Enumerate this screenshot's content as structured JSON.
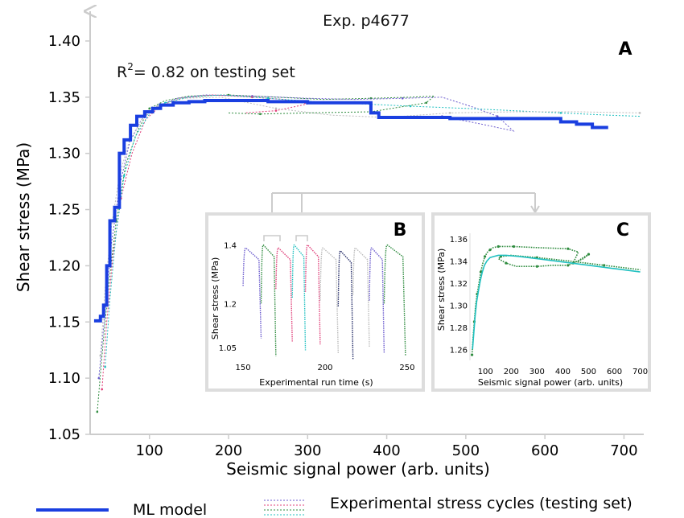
{
  "figure": {
    "title": "Exp. p4677",
    "r2_label": "R",
    "r2_sup": "2",
    "r2_text": "= 0.82 on testing set",
    "legend": {
      "model_label": "ML model",
      "cycles_label": "Experimental stress cycles (testing set)"
    },
    "colors": {
      "model": "#1a3fe0",
      "cycle_a": "#2e8b3e",
      "cycle_b": "#6a5acd",
      "cycle_c": "#e0407a",
      "cycle_d": "#20c0c0",
      "cycle_e": "#bbbbbb"
    }
  },
  "chart_data": [
    {
      "panel": "A",
      "type": "line",
      "xlabel": "Seismic signal power (arb. units)",
      "ylabel": "Shear stress (MPa)",
      "xlim": [
        25,
        725
      ],
      "ylim": [
        1.05,
        1.415
      ],
      "xticks": [
        100,
        200,
        300,
        400,
        500,
        600,
        700
      ],
      "yticks": [
        1.05,
        1.1,
        1.15,
        1.2,
        1.25,
        1.3,
        1.35,
        1.4
      ],
      "ytick_labels": [
        "1.05",
        "1.10",
        "1.15",
        "1.20",
        "1.25",
        "1.30",
        "1.35",
        "1.40"
      ],
      "series": [
        {
          "role": "model",
          "x": [
            30,
            38,
            38,
            42,
            42,
            46,
            46,
            50,
            50,
            56,
            56,
            62,
            62,
            68,
            68,
            76,
            76,
            84,
            84,
            94,
            94,
            104,
            104,
            114,
            114,
            130,
            130,
            150,
            150,
            170,
            170,
            250,
            250,
            300,
            300,
            380,
            380,
            390,
            390,
            480,
            480,
            620,
            620,
            640,
            640,
            660,
            660,
            680
          ],
          "y": [
            1.151,
            1.151,
            1.155,
            1.155,
            1.165,
            1.165,
            1.2,
            1.2,
            1.24,
            1.24,
            1.252,
            1.252,
            1.3,
            1.3,
            1.312,
            1.312,
            1.325,
            1.325,
            1.333,
            1.333,
            1.337,
            1.337,
            1.34,
            1.34,
            1.343,
            1.343,
            1.345,
            1.345,
            1.346,
            1.346,
            1.347,
            1.347,
            1.346,
            1.346,
            1.345,
            1.345,
            1.336,
            1.336,
            1.332,
            1.332,
            1.331,
            1.331,
            1.328,
            1.328,
            1.326,
            1.326,
            1.323,
            1.323
          ]
        },
        {
          "role": "cycle",
          "color": "cycle_a",
          "x": [
            34,
            40,
            48,
            58,
            70,
            85,
            100,
            120,
            150,
            200,
            260,
            320,
            380,
            430,
            460,
            450,
            380,
            300,
            240,
            200
          ],
          "y": [
            1.07,
            1.12,
            1.18,
            1.24,
            1.29,
            1.32,
            1.34,
            1.347,
            1.351,
            1.352,
            1.35,
            1.348,
            1.349,
            1.35,
            1.351,
            1.345,
            1.337,
            1.336,
            1.335,
            1.336
          ]
        },
        {
          "role": "cycle",
          "color": "cycle_b",
          "x": [
            36,
            44,
            52,
            62,
            75,
            90,
            110,
            135,
            170,
            230,
            300,
            360,
            420,
            470,
            510,
            540,
            560,
            520,
            470
          ],
          "y": [
            1.1,
            1.16,
            1.22,
            1.27,
            1.31,
            1.33,
            1.342,
            1.349,
            1.352,
            1.351,
            1.349,
            1.348,
            1.349,
            1.35,
            1.341,
            1.333,
            1.32,
            1.326,
            1.333
          ]
        },
        {
          "role": "cycle",
          "color": "cycle_c",
          "x": [
            40,
            46,
            54,
            64,
            78,
            95,
            115,
            140,
            180,
            230,
            270,
            300,
            260,
            220
          ],
          "y": [
            1.09,
            1.15,
            1.21,
            1.26,
            1.3,
            1.33,
            1.343,
            1.349,
            1.352,
            1.35,
            1.348,
            1.344,
            1.338,
            1.336
          ]
        },
        {
          "role": "cycle",
          "color": "cycle_d",
          "x": [
            44,
            50,
            58,
            68,
            82,
            100,
            120,
            150,
            190,
            250,
            310,
            370,
            430,
            500,
            560,
            620,
            680,
            720
          ],
          "y": [
            1.11,
            1.17,
            1.23,
            1.28,
            1.315,
            1.335,
            1.345,
            1.35,
            1.352,
            1.349,
            1.346,
            1.344,
            1.342,
            1.34,
            1.338,
            1.336,
            1.334,
            1.333
          ]
        },
        {
          "role": "cycle",
          "color": "cycle_e",
          "x": [
            38,
            44,
            52,
            62,
            74,
            90,
            110,
            140,
            190,
            260,
            330,
            400,
            480,
            560,
            640,
            720
          ],
          "y": [
            1.12,
            1.18,
            1.235,
            1.28,
            1.31,
            1.33,
            1.342,
            1.349,
            1.35,
            1.34,
            1.334,
            1.332,
            1.336,
            1.337,
            1.337,
            1.336
          ]
        }
      ]
    },
    {
      "panel": "B",
      "type": "line",
      "xlabel": "Experimental run time (s)",
      "ylabel": "Shear stress (MPa)",
      "xlim": [
        148,
        252
      ],
      "ylim": [
        1.0,
        1.44
      ],
      "xticks": [
        150,
        200,
        250
      ],
      "yticks": [
        1.05,
        1.2,
        1.4
      ],
      "ytick_labels": [
        "1.05",
        "1.2",
        "1.4"
      ],
      "cycles": [
        {
          "start": 150,
          "peak": 1.39,
          "end": 161,
          "min": 1.08,
          "color": "cycle_b"
        },
        {
          "start": 161,
          "peak": 1.4,
          "end": 170,
          "min": 1.02,
          "color": "cycle_a"
        },
        {
          "start": 170,
          "peak": 1.39,
          "end": 180,
          "min": 1.07,
          "color": "cycle_c"
        },
        {
          "start": 180,
          "peak": 1.4,
          "end": 188,
          "min": 1.04,
          "color": "cycle_d"
        },
        {
          "start": 188,
          "peak": 1.4,
          "end": 197,
          "min": 1.06,
          "color": "cycle_c"
        },
        {
          "start": 197,
          "peak": 1.39,
          "end": 208,
          "min": 1.03,
          "color": "cycle_e"
        },
        {
          "start": 208,
          "peak": 1.38,
          "end": 217,
          "min": 1.01,
          "color": "model_dark"
        },
        {
          "start": 217,
          "peak": 1.39,
          "end": 227,
          "min": 1.05,
          "color": "cycle_e"
        },
        {
          "start": 227,
          "peak": 1.39,
          "end": 236,
          "min": 1.03,
          "color": "cycle_b"
        },
        {
          "start": 236,
          "peak": 1.4,
          "end": 249,
          "min": 1.02,
          "color": "cycle_a"
        }
      ]
    },
    {
      "panel": "C",
      "type": "line",
      "xlabel": "Seismic signal power (arb. units)",
      "ylabel": "Shear stress (MPa)",
      "xlim": [
        40,
        720
      ],
      "ylim": [
        1.25,
        1.365
      ],
      "xticks": [
        100,
        200,
        300,
        400,
        500,
        600,
        700
      ],
      "yticks": [
        1.26,
        1.28,
        1.3,
        1.32,
        1.34,
        1.36
      ],
      "ytick_labels": [
        "1.26",
        "1.28",
        "1.30",
        "1.32",
        "1.34",
        "1.36"
      ],
      "series": [
        {
          "color": "cycle_a",
          "x": [
            48,
            52,
            57,
            62,
            68,
            75,
            82,
            90,
            98,
            108,
            118,
            130,
            150,
            180,
            210,
            300,
            420,
            460,
            440,
            480,
            500,
            460,
            420,
            360,
            300,
            220,
            180,
            150,
            160,
            200,
            300,
            420,
            560,
            700
          ],
          "y": [
            1.255,
            1.27,
            1.285,
            1.3,
            1.31,
            1.32,
            1.33,
            1.338,
            1.344,
            1.348,
            1.35,
            1.352,
            1.353,
            1.353,
            1.353,
            1.352,
            1.351,
            1.348,
            1.338,
            1.342,
            1.346,
            1.34,
            1.336,
            1.336,
            1.335,
            1.335,
            1.338,
            1.342,
            1.344,
            1.345,
            1.343,
            1.34,
            1.336,
            1.332
          ]
        },
        {
          "color": "cycle_d",
          "x": [
            50,
            55,
            60,
            66,
            73,
            80,
            88,
            96,
            106,
            118,
            132,
            150,
            180,
            230,
            300,
            400,
            500,
            600,
            700
          ],
          "y": [
            1.26,
            1.275,
            1.29,
            1.303,
            1.313,
            1.322,
            1.33,
            1.336,
            1.34,
            1.343,
            1.344,
            1.345,
            1.345,
            1.344,
            1.342,
            1.339,
            1.336,
            1.333,
            1.33
          ]
        }
      ]
    }
  ],
  "panels": {
    "A": {
      "label": "A"
    },
    "B": {
      "label": "B"
    },
    "C": {
      "label": "C"
    }
  }
}
